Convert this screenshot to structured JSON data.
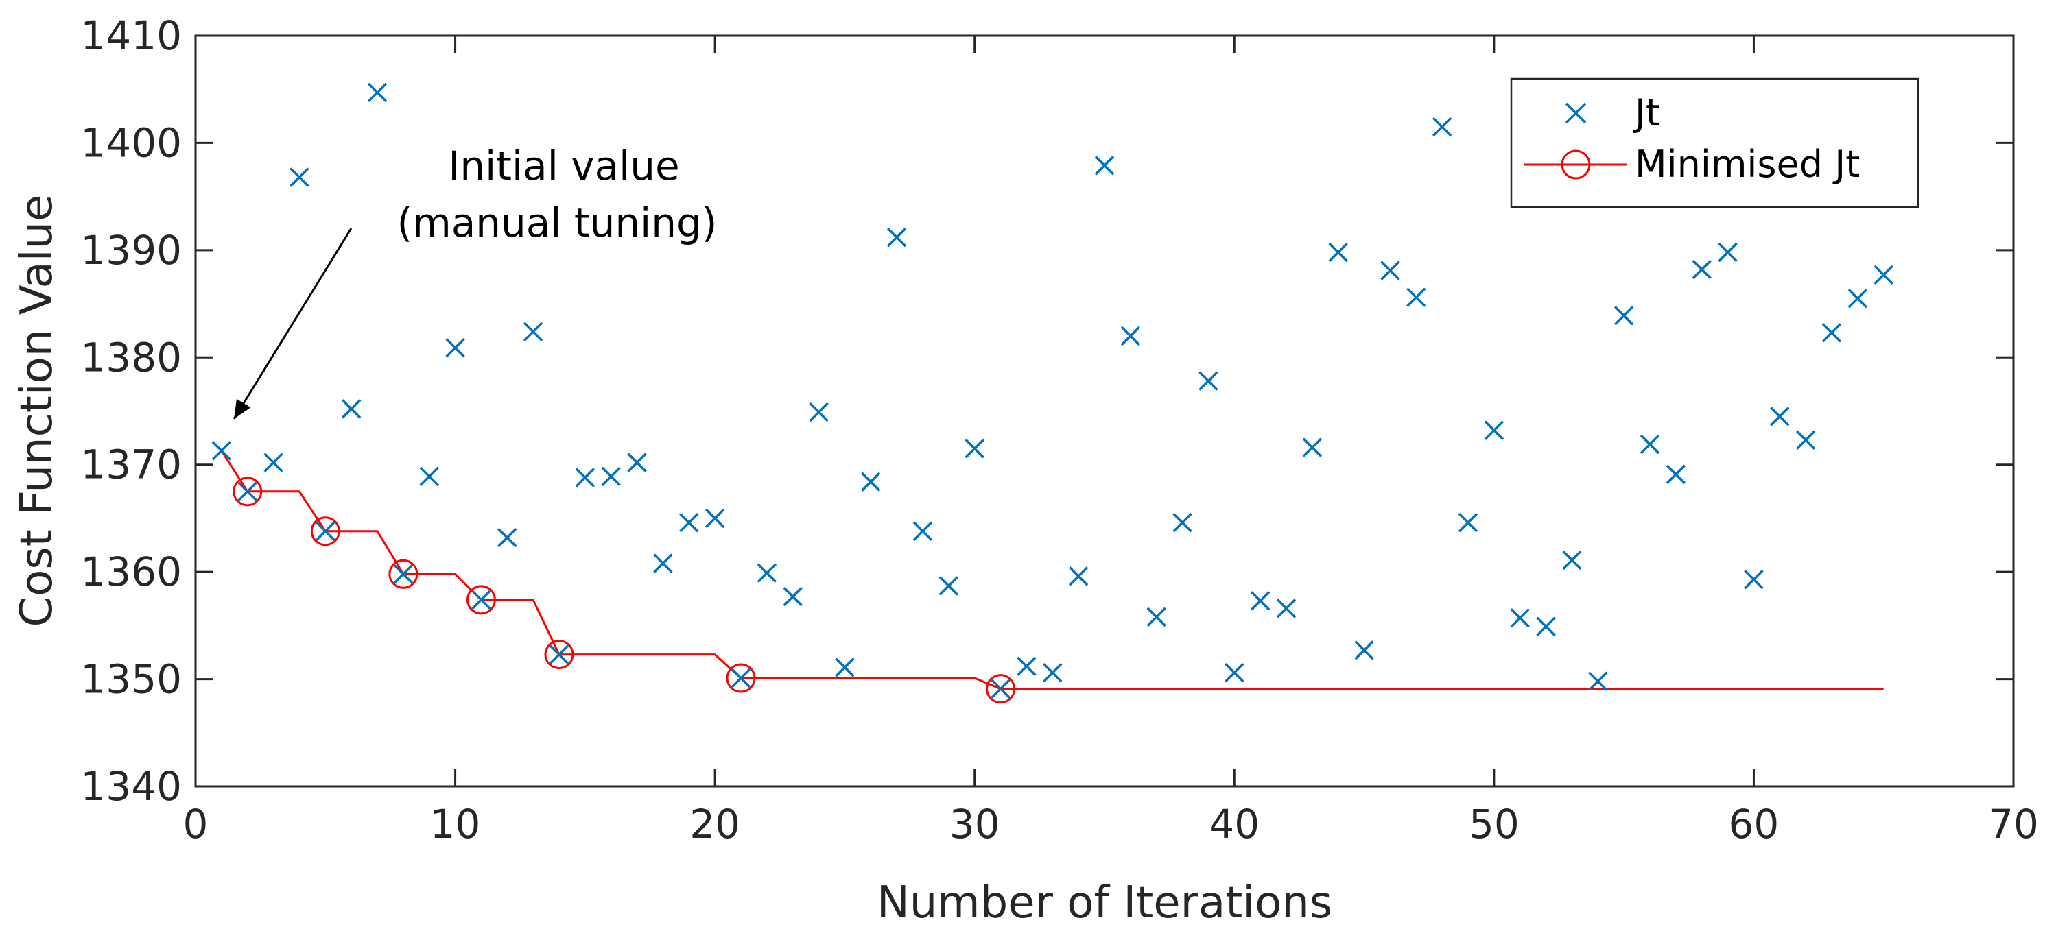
{
  "chart_data": {
    "type": "scatter",
    "title": "",
    "xlabel": "Number of Iterations",
    "ylabel": "Cost Function Value",
    "xlim": [
      0,
      70
    ],
    "ylim": [
      1340,
      1410
    ],
    "xticks": [
      0,
      10,
      20,
      30,
      40,
      50,
      60,
      70
    ],
    "yticks": [
      1340,
      1350,
      1360,
      1370,
      1380,
      1390,
      1400,
      1410
    ],
    "grid": false,
    "legend_position": "top-right",
    "annotation": {
      "lines": [
        "Initial value",
        "(manual tuning)"
      ],
      "points_to": [
        1,
        1371.3
      ]
    },
    "series": [
      {
        "name": "Jt",
        "marker": "x",
        "color": "#0072BD",
        "x": [
          1,
          2,
          3,
          4,
          5,
          6,
          7,
          8,
          9,
          10,
          11,
          12,
          13,
          14,
          15,
          16,
          17,
          18,
          19,
          20,
          21,
          22,
          23,
          24,
          25,
          26,
          27,
          28,
          29,
          30,
          31,
          32,
          33,
          34,
          35,
          36,
          37,
          38,
          39,
          40,
          41,
          42,
          43,
          44,
          45,
          46,
          47,
          48,
          49,
          50,
          51,
          52,
          53,
          54,
          55,
          56,
          57,
          58,
          59,
          60,
          61,
          62,
          63,
          64,
          65
        ],
        "y": [
          1371.3,
          1367.5,
          1370.2,
          1396.8,
          1363.8,
          1375.2,
          1404.7,
          1359.8,
          1368.9,
          1380.9,
          1357.4,
          1363.2,
          1382.4,
          1352.3,
          1368.8,
          1368.9,
          1370.2,
          1360.8,
          1364.6,
          1365.0,
          1350.1,
          1359.9,
          1357.7,
          1374.9,
          1351.1,
          1368.4,
          1391.2,
          1363.8,
          1358.7,
          1371.5,
          1349.1,
          1351.2,
          1350.6,
          1359.6,
          1397.9,
          1382.0,
          1355.8,
          1364.6,
          1377.8,
          1350.6,
          1357.3,
          1356.6,
          1371.6,
          1389.8,
          1352.7,
          1388.1,
          1385.6,
          1401.5,
          1364.6,
          1373.2,
          1355.7,
          1354.9,
          1361.1,
          1349.8,
          1383.9,
          1371.9,
          1369.1,
          1388.2,
          1389.8,
          1359.3,
          1374.5,
          1372.3,
          1382.3,
          1385.5,
          1387.7
        ]
      },
      {
        "name": "Minimised Jt",
        "marker": "o",
        "line": "step",
        "color": "#FF0000",
        "x": [
          1,
          2,
          5,
          8,
          11,
          14,
          21,
          31,
          65
        ],
        "y": [
          1371.3,
          1367.5,
          1363.8,
          1359.8,
          1357.4,
          1352.3,
          1350.1,
          1349.1,
          1349.1
        ],
        "marked_points_x": [
          2,
          5,
          8,
          11,
          14,
          21,
          31
        ]
      }
    ]
  }
}
